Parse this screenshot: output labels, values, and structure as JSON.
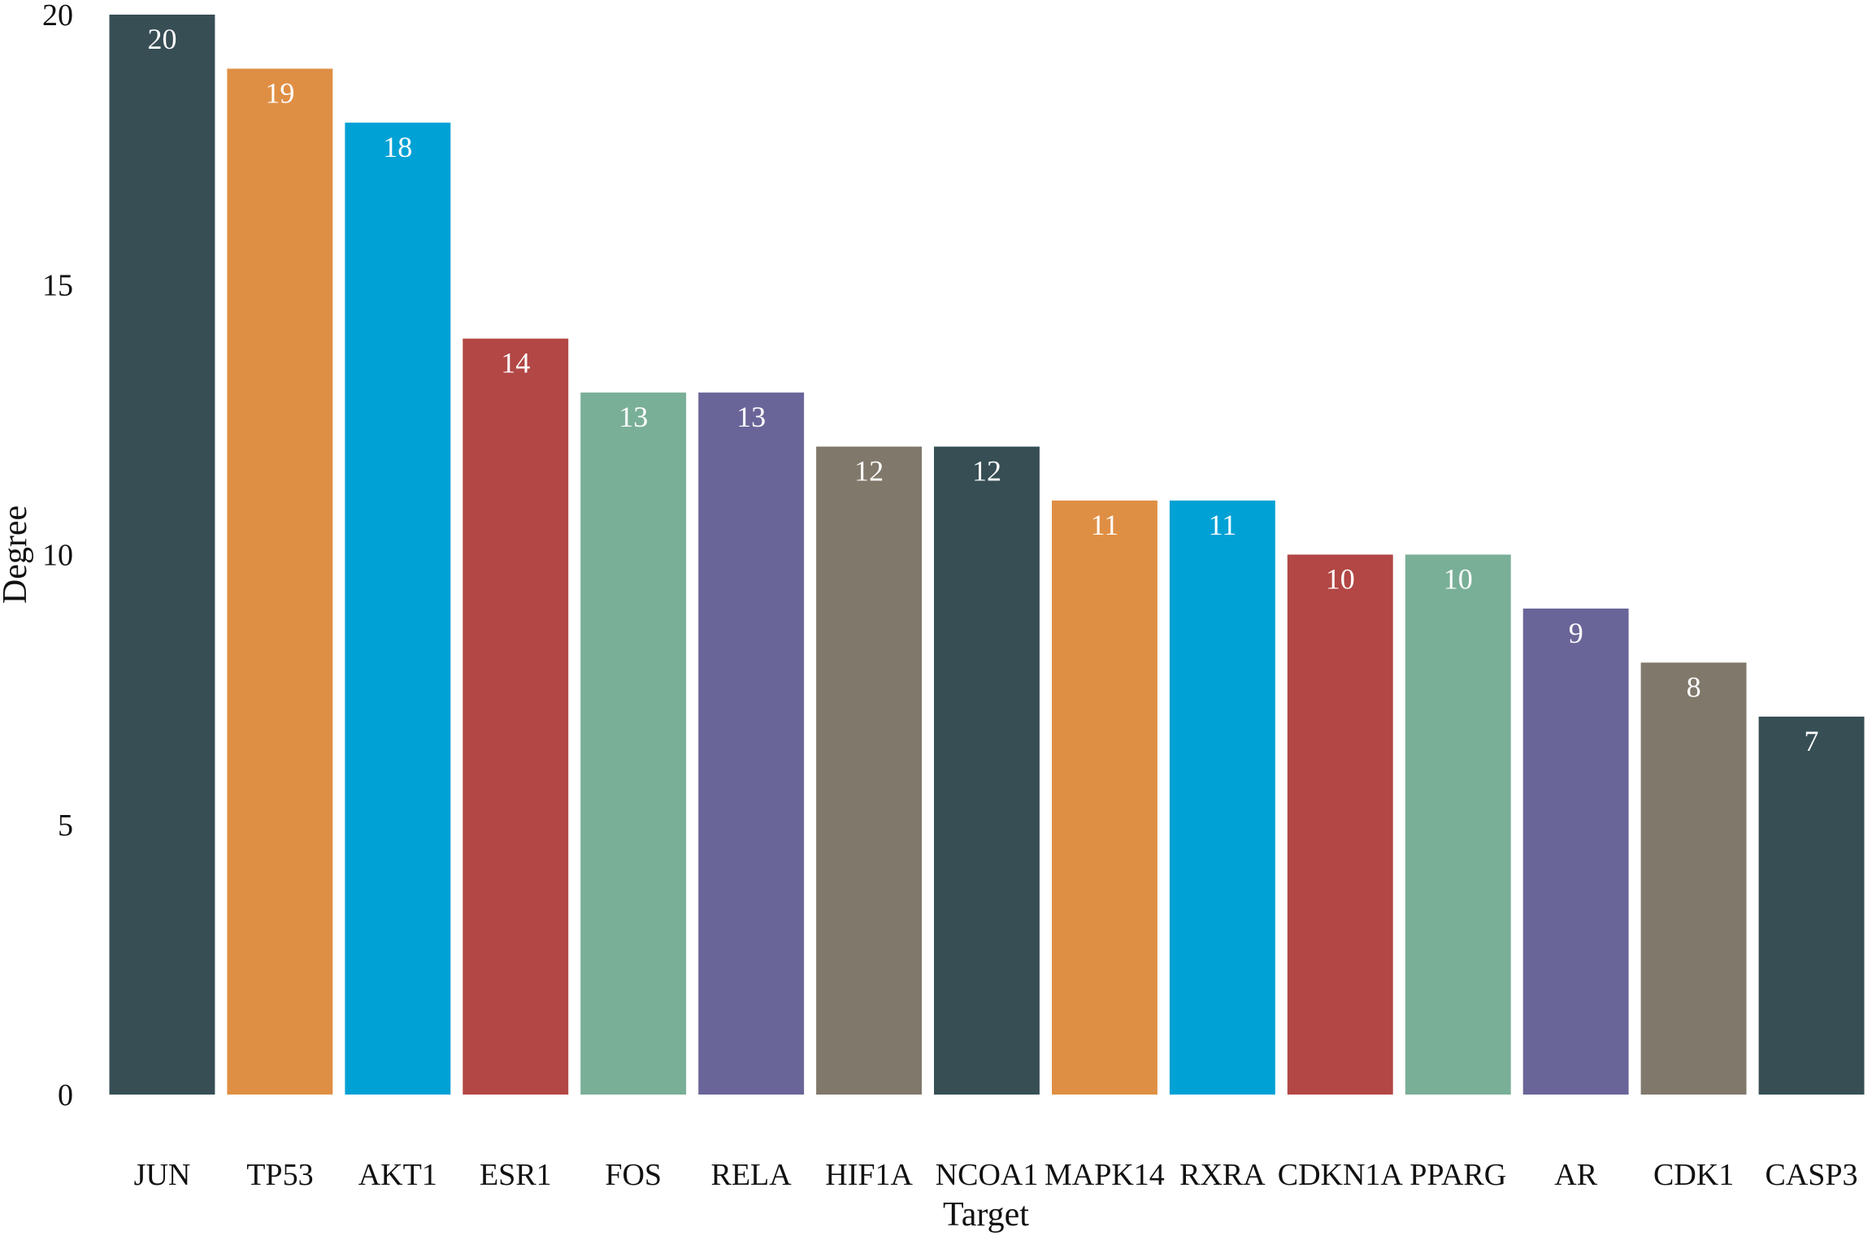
{
  "chart_data": {
    "type": "bar",
    "categories": [
      "JUN",
      "TP53",
      "AKT1",
      "ESR1",
      "FOS",
      "RELA",
      "HIF1A",
      "NCOA1",
      "MAPK14",
      "RXRA",
      "CDKN1A",
      "PPARG",
      "AR",
      "CDK1",
      "CASP3"
    ],
    "values": [
      20,
      19,
      18,
      14,
      13,
      13,
      12,
      12,
      11,
      11,
      10,
      10,
      9,
      8,
      7
    ],
    "data_labels": [
      "20",
      "19",
      "18",
      "14",
      "13",
      "13",
      "12",
      "12",
      "11",
      "11",
      "10",
      "10",
      "9",
      "8",
      "7"
    ],
    "colors": [
      "#374e55",
      "#df8f44",
      "#00a1d5",
      "#b24745",
      "#79af97",
      "#6a6599",
      "#80796b",
      "#374e55",
      "#df8f44",
      "#00a1d5",
      "#b24745",
      "#79af97",
      "#6a6599",
      "#80796b",
      "#374e55"
    ],
    "xlabel": "Target",
    "ylabel": "Degree",
    "ylim": [
      0,
      20
    ],
    "yticks": [
      "0",
      "5",
      "10",
      "15",
      "20"
    ],
    "ytick_values": [
      0,
      5,
      10,
      15,
      20
    ],
    "grid": false,
    "legend": "none"
  }
}
